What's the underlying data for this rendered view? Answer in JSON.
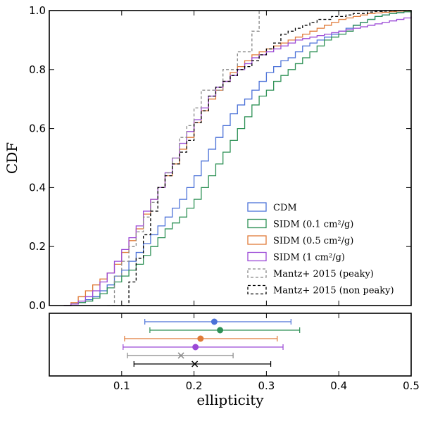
{
  "chart_data": [
    {
      "type": "line",
      "step": true,
      "xlim": [
        0.0,
        0.5
      ],
      "ylim": [
        0.0,
        1.0
      ],
      "xticks": [
        0.1,
        0.2,
        0.3,
        0.4
      ],
      "xtick_labels": [
        "",
        "",
        "",
        ""
      ],
      "yticks": [
        0.0,
        0.2,
        0.4,
        0.6,
        0.8,
        1.0
      ],
      "ytick_labels": [
        "0.0",
        "0.2",
        "0.4",
        "0.6",
        "0.8",
        "1.0"
      ],
      "ylabel": "CDF",
      "grid": false,
      "legend": "lower-right",
      "series": [
        {
          "name": "CDM",
          "color": "#4c72d8",
          "dash": "solid",
          "x": [
            0.02,
            0.03,
            0.04,
            0.05,
            0.06,
            0.07,
            0.08,
            0.09,
            0.1,
            0.11,
            0.12,
            0.13,
            0.14,
            0.15,
            0.16,
            0.17,
            0.18,
            0.19,
            0.2,
            0.21,
            0.22,
            0.23,
            0.24,
            0.25,
            0.26,
            0.27,
            0.28,
            0.29,
            0.3,
            0.31,
            0.32,
            0.33,
            0.34,
            0.35,
            0.36,
            0.37,
            0.38,
            0.39,
            0.4,
            0.41,
            0.42,
            0.43,
            0.44,
            0.45,
            0.46,
            0.47,
            0.48,
            0.49,
            0.5
          ],
          "y": [
            0.0,
            0.005,
            0.01,
            0.02,
            0.03,
            0.05,
            0.07,
            0.1,
            0.12,
            0.15,
            0.18,
            0.21,
            0.24,
            0.27,
            0.3,
            0.33,
            0.36,
            0.4,
            0.44,
            0.49,
            0.53,
            0.57,
            0.61,
            0.65,
            0.68,
            0.7,
            0.73,
            0.76,
            0.79,
            0.81,
            0.83,
            0.84,
            0.86,
            0.88,
            0.89,
            0.9,
            0.91,
            0.92,
            0.93,
            0.94,
            0.95,
            0.96,
            0.97,
            0.98,
            0.985,
            0.99,
            0.993,
            0.996,
            1.0
          ]
        },
        {
          "name": "SIDM (0.1 cm²/g)",
          "color": "#2e9156",
          "dash": "solid",
          "x": [
            0.02,
            0.03,
            0.04,
            0.05,
            0.06,
            0.07,
            0.08,
            0.09,
            0.1,
            0.11,
            0.12,
            0.13,
            0.14,
            0.15,
            0.16,
            0.17,
            0.18,
            0.19,
            0.2,
            0.21,
            0.22,
            0.23,
            0.24,
            0.25,
            0.26,
            0.27,
            0.28,
            0.29,
            0.3,
            0.31,
            0.32,
            0.33,
            0.34,
            0.35,
            0.36,
            0.37,
            0.38,
            0.39,
            0.4,
            0.41,
            0.42,
            0.43,
            0.44,
            0.45,
            0.46,
            0.47,
            0.48,
            0.49,
            0.5
          ],
          "y": [
            0.0,
            0.005,
            0.01,
            0.015,
            0.025,
            0.04,
            0.06,
            0.08,
            0.1,
            0.12,
            0.14,
            0.17,
            0.2,
            0.23,
            0.26,
            0.28,
            0.3,
            0.33,
            0.36,
            0.4,
            0.44,
            0.48,
            0.52,
            0.56,
            0.6,
            0.64,
            0.68,
            0.71,
            0.73,
            0.76,
            0.78,
            0.8,
            0.82,
            0.84,
            0.86,
            0.88,
            0.9,
            0.91,
            0.92,
            0.93,
            0.95,
            0.96,
            0.97,
            0.98,
            0.985,
            0.99,
            0.993,
            0.996,
            1.0
          ]
        },
        {
          "name": "SIDM (0.5 cm²/g)",
          "color": "#e07b39",
          "dash": "solid",
          "x": [
            0.02,
            0.03,
            0.04,
            0.05,
            0.06,
            0.07,
            0.08,
            0.09,
            0.1,
            0.11,
            0.12,
            0.13,
            0.14,
            0.15,
            0.16,
            0.17,
            0.18,
            0.19,
            0.2,
            0.21,
            0.22,
            0.23,
            0.24,
            0.25,
            0.26,
            0.27,
            0.28,
            0.29,
            0.3,
            0.31,
            0.32,
            0.33,
            0.34,
            0.35,
            0.36,
            0.37,
            0.38,
            0.39,
            0.4,
            0.41,
            0.42,
            0.43,
            0.44,
            0.45,
            0.46,
            0.47,
            0.48,
            0.49,
            0.5
          ],
          "y": [
            0.0,
            0.01,
            0.03,
            0.05,
            0.07,
            0.09,
            0.11,
            0.14,
            0.18,
            0.22,
            0.26,
            0.31,
            0.36,
            0.4,
            0.44,
            0.48,
            0.53,
            0.57,
            0.62,
            0.66,
            0.7,
            0.73,
            0.76,
            0.79,
            0.81,
            0.83,
            0.85,
            0.86,
            0.87,
            0.88,
            0.89,
            0.9,
            0.91,
            0.92,
            0.93,
            0.94,
            0.95,
            0.96,
            0.97,
            0.975,
            0.98,
            0.985,
            0.99,
            0.992,
            0.994,
            0.996,
            0.998,
            0.999,
            1.0
          ]
        },
        {
          "name": "SIDM (1 cm²/g)",
          "color": "#9b49d6",
          "dash": "solid",
          "x": [
            0.02,
            0.03,
            0.04,
            0.05,
            0.06,
            0.07,
            0.08,
            0.09,
            0.1,
            0.11,
            0.12,
            0.13,
            0.14,
            0.15,
            0.16,
            0.17,
            0.18,
            0.19,
            0.2,
            0.21,
            0.22,
            0.23,
            0.24,
            0.25,
            0.26,
            0.27,
            0.28,
            0.29,
            0.3,
            0.31,
            0.32,
            0.33,
            0.34,
            0.35,
            0.36,
            0.37,
            0.38,
            0.39,
            0.4,
            0.41,
            0.42,
            0.43,
            0.44,
            0.45,
            0.46,
            0.47,
            0.48,
            0.49,
            0.5
          ],
          "y": [
            0.0,
            0.005,
            0.015,
            0.03,
            0.05,
            0.08,
            0.11,
            0.15,
            0.19,
            0.23,
            0.27,
            0.32,
            0.36,
            0.4,
            0.45,
            0.5,
            0.55,
            0.59,
            0.63,
            0.67,
            0.71,
            0.74,
            0.76,
            0.78,
            0.8,
            0.82,
            0.84,
            0.85,
            0.86,
            0.87,
            0.88,
            0.89,
            0.9,
            0.905,
            0.91,
            0.915,
            0.92,
            0.925,
            0.93,
            0.935,
            0.94,
            0.945,
            0.95,
            0.955,
            0.96,
            0.965,
            0.97,
            0.975,
            0.98
          ]
        },
        {
          "name": "Mantz+ 2015 (peaky)",
          "color": "#888888",
          "dash": "dashed",
          "x": [
            0.08,
            0.09,
            0.1,
            0.11,
            0.12,
            0.13,
            0.14,
            0.15,
            0.16,
            0.17,
            0.18,
            0.19,
            0.2,
            0.21,
            0.22,
            0.23,
            0.24,
            0.25,
            0.26,
            0.27,
            0.28,
            0.29
          ],
          "y": [
            0.0,
            0.1,
            0.15,
            0.2,
            0.25,
            0.3,
            0.35,
            0.4,
            0.45,
            0.5,
            0.57,
            0.61,
            0.67,
            0.73,
            0.73,
            0.73,
            0.8,
            0.8,
            0.86,
            0.86,
            0.93,
            1.0
          ]
        },
        {
          "name": "Mantz+ 2015 (non peaky)",
          "color": "#000000",
          "dash": "dashed",
          "x": [
            0.1,
            0.11,
            0.12,
            0.13,
            0.14,
            0.15,
            0.16,
            0.17,
            0.18,
            0.19,
            0.2,
            0.21,
            0.22,
            0.23,
            0.24,
            0.25,
            0.26,
            0.27,
            0.28,
            0.29,
            0.3,
            0.31,
            0.32,
            0.33,
            0.34,
            0.35,
            0.36,
            0.37,
            0.38,
            0.39,
            0.4,
            0.41,
            0.42,
            0.43,
            0.44,
            0.45,
            0.46,
            0.47,
            0.48,
            0.49,
            0.5
          ],
          "y": [
            0.0,
            0.08,
            0.16,
            0.24,
            0.32,
            0.4,
            0.44,
            0.48,
            0.52,
            0.56,
            0.62,
            0.66,
            0.71,
            0.74,
            0.76,
            0.78,
            0.8,
            0.81,
            0.83,
            0.85,
            0.87,
            0.89,
            0.92,
            0.93,
            0.94,
            0.95,
            0.96,
            0.97,
            0.97,
            0.98,
            0.98,
            0.985,
            0.99,
            0.99,
            0.995,
            0.997,
            0.998,
            0.999,
            1.0,
            1.0,
            1.0
          ]
        }
      ]
    },
    {
      "type": "scatter",
      "errorbar": true,
      "xlim": [
        0.0,
        0.5
      ],
      "xticks": [
        0.1,
        0.2,
        0.3,
        0.4,
        0.5
      ],
      "xtick_labels": [
        "0.1",
        "0.2",
        "0.3",
        "0.4",
        "0.5"
      ],
      "xlabel": "ellipticity",
      "grid": false,
      "points": [
        {
          "series": "CDM",
          "color": "#4c72d8",
          "marker": "circle",
          "x": 0.228,
          "xerr": [
            0.132,
            0.334
          ]
        },
        {
          "series": "SIDM (0.1 cm²/g)",
          "color": "#2e9156",
          "marker": "circle",
          "x": 0.236,
          "xerr": [
            0.139,
            0.346
          ]
        },
        {
          "series": "SIDM (0.5 cm²/g)",
          "color": "#e07b39",
          "marker": "circle",
          "x": 0.209,
          "xerr": [
            0.104,
            0.315
          ]
        },
        {
          "series": "SIDM (1 cm²/g)",
          "color": "#9b49d6",
          "marker": "circle",
          "x": 0.202,
          "xerr": [
            0.102,
            0.323
          ]
        },
        {
          "series": "Mantz+ 2015 (peaky)",
          "color": "#888888",
          "marker": "x",
          "x": 0.182,
          "xerr": [
            0.108,
            0.254
          ]
        },
        {
          "series": "Mantz+ 2015 (non peaky)",
          "color": "#000000",
          "marker": "x",
          "x": 0.201,
          "xerr": [
            0.117,
            0.306
          ]
        }
      ]
    }
  ]
}
